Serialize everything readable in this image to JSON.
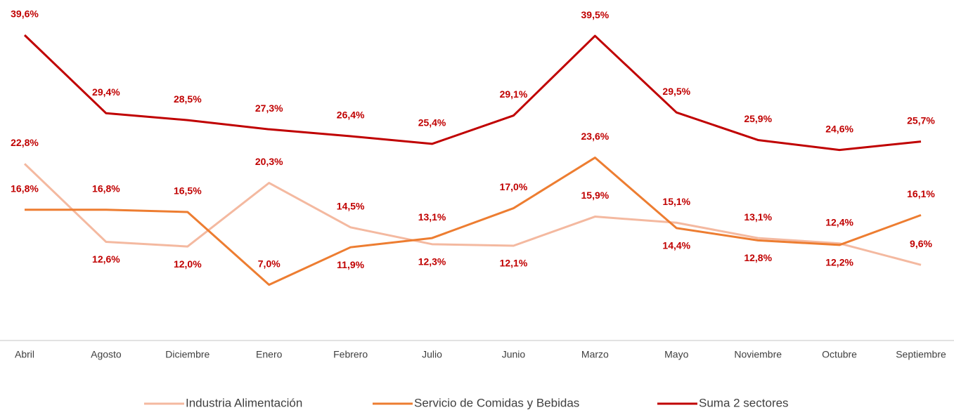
{
  "chart_data": {
    "type": "line",
    "categories": [
      "Abril",
      "Agosto",
      "Diciembre",
      "Enero",
      "Febrero",
      "Julio",
      "Junio",
      "Marzo",
      "Mayo",
      "Noviembre",
      "Octubre",
      "Septiembre"
    ],
    "series": [
      {
        "name": "Industria Alimentación",
        "color": "#F4B9A0",
        "values": [
          22.8,
          12.6,
          12.0,
          20.3,
          14.5,
          12.3,
          12.1,
          15.9,
          15.1,
          13.1,
          12.4,
          9.6
        ],
        "value_labels": [
          "22,8%",
          "12,6%",
          "12,0%",
          "20,3%",
          "14,5%",
          "12,3%",
          "12,1%",
          "15,9%",
          "15,1%",
          "13,1%",
          "12,4%",
          "9,6%"
        ]
      },
      {
        "name": "Servicio de Comidas y Bebidas",
        "color": "#ED7D31",
        "values": [
          16.8,
          16.8,
          16.5,
          7.0,
          11.9,
          13.1,
          17.0,
          23.6,
          14.4,
          12.8,
          12.2,
          16.1
        ],
        "value_labels": [
          "16,8%",
          "16,8%",
          "16,5%",
          "7,0%",
          "11,9%",
          "13,1%",
          "17,0%",
          "23,6%",
          "14,4%",
          "12,8%",
          "12,2%",
          "16,1%"
        ]
      },
      {
        "name": "Suma 2 sectores",
        "color": "#C00000",
        "values": [
          39.6,
          29.4,
          28.5,
          27.3,
          26.4,
          25.4,
          29.1,
          39.5,
          29.5,
          25.9,
          24.6,
          25.7
        ],
        "value_labels": [
          "39,6%",
          "29,4%",
          "28,5%",
          "27,3%",
          "26,4%",
          "25,4%",
          "29,1%",
          "39,5%",
          "29,5%",
          "25,9%",
          "24,6%",
          "25,7%"
        ]
      }
    ],
    "ylim": [
      0,
      44
    ],
    "label_color": "#C00000",
    "legend": "bottom",
    "grid": false
  }
}
